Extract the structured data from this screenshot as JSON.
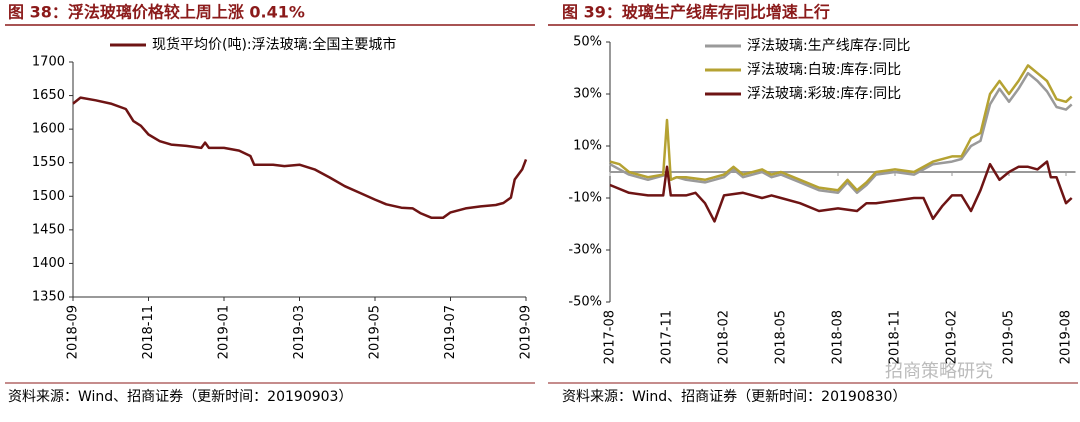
{
  "chart_data": [
    {
      "type": "line",
      "title": "图 38：浮法玻璃价格较上周上涨 0.41%",
      "source": "资料来源：Wind、招商证券（更新时间：20190903）",
      "xlim": [
        0,
        12
      ],
      "xticks": [
        {
          "value": 0,
          "label": "2018-09"
        },
        {
          "value": 2,
          "label": "2018-11"
        },
        {
          "value": 4,
          "label": "2019-01"
        },
        {
          "value": 6,
          "label": "2019-03"
        },
        {
          "value": 8,
          "label": "2019-05"
        },
        {
          "value": 10,
          "label": "2019-07"
        },
        {
          "value": 12,
          "label": "2019-09"
        }
      ],
      "ylim": [
        1350,
        1700
      ],
      "yticks": [
        1350,
        1400,
        1450,
        1500,
        1550,
        1600,
        1650,
        1700
      ],
      "series": [
        {
          "name": "现货平均价(吨):浮法玻璃:全国主要城市",
          "color": "#6e1414",
          "x": [
            0,
            0.2,
            0.6,
            1.0,
            1.4,
            1.6,
            1.8,
            2.0,
            2.3,
            2.6,
            3.0,
            3.4,
            3.5,
            3.6,
            4.0,
            4.4,
            4.7,
            4.8,
            5.3,
            5.6,
            6.0,
            6.4,
            6.8,
            7.2,
            7.6,
            8.0,
            8.3,
            8.7,
            9.0,
            9.2,
            9.5,
            9.8,
            10.0,
            10.4,
            10.8,
            11.2,
            11.4,
            11.6,
            11.7,
            11.9,
            12.0
          ],
          "values": [
            1638,
            1647,
            1643,
            1638,
            1630,
            1612,
            1605,
            1592,
            1582,
            1577,
            1575,
            1572,
            1580,
            1572,
            1572,
            1568,
            1560,
            1547,
            1547,
            1545,
            1547,
            1540,
            1528,
            1515,
            1505,
            1495,
            1488,
            1483,
            1482,
            1475,
            1468,
            1468,
            1476,
            1482,
            1485,
            1487,
            1490,
            1498,
            1525,
            1540,
            1555
          ]
        }
      ]
    },
    {
      "type": "line",
      "title": "图 39：玻璃生产线库存同比增速上行",
      "source": "资料来源：Wind、招商证券（更新时间：20190830）",
      "watermark": "招商策略研究",
      "xlim": [
        0,
        24.5
      ],
      "xticks": [
        {
          "value": 0,
          "label": "2017-08"
        },
        {
          "value": 3,
          "label": "2017-11"
        },
        {
          "value": 6,
          "label": "2018-02"
        },
        {
          "value": 9,
          "label": "2018-05"
        },
        {
          "value": 12,
          "label": "2018-08"
        },
        {
          "value": 15,
          "label": "2018-11"
        },
        {
          "value": 18,
          "label": "2019-02"
        },
        {
          "value": 21,
          "label": "2019-05"
        },
        {
          "value": 24,
          "label": "2019-08"
        }
      ],
      "ylim": [
        -50,
        50
      ],
      "yticks": [
        {
          "value": -50,
          "label": "-50%"
        },
        {
          "value": -30,
          "label": "-30%"
        },
        {
          "value": -10,
          "label": "-10%"
        },
        {
          "value": 10,
          "label": "10%"
        },
        {
          "value": 30,
          "label": "30%"
        },
        {
          "value": 50,
          "label": "50%"
        }
      ],
      "series": [
        {
          "name": "浮法玻璃:生产线库存:同比",
          "color": "#9a9a9a",
          "x": [
            0,
            1,
            2,
            3,
            3.2,
            3.5,
            4,
            5,
            6,
            6.5,
            7,
            8,
            8.5,
            9,
            10,
            11,
            12,
            12.5,
            13,
            13.5,
            14,
            15,
            16,
            17,
            18,
            18.5,
            19,
            19.5,
            20,
            20.5,
            21,
            21.5,
            22,
            22.5,
            23,
            23.5,
            24,
            24.3
          ],
          "values": [
            3,
            -1,
            -3,
            -1,
            -3,
            -2,
            -3,
            -4,
            -2,
            1,
            -2,
            0,
            -2,
            -1,
            -4,
            -7,
            -8,
            -4,
            -8,
            -5,
            -1,
            0,
            -1,
            3,
            4,
            5,
            10,
            12,
            26,
            32,
            27,
            32,
            38,
            35,
            31,
            25,
            24,
            26
          ]
        },
        {
          "name": "浮法玻璃:白玻:库存:同比",
          "color": "#b5a232",
          "x": [
            0,
            0.5,
            1,
            2,
            2.8,
            3.0,
            3.2,
            3.5,
            4,
            5,
            6,
            6.5,
            7,
            8,
            8.5,
            9,
            10,
            11,
            12,
            12.5,
            13,
            13.5,
            14,
            15,
            16,
            17,
            18,
            18.5,
            19,
            19.5,
            20,
            20.5,
            21,
            21.5,
            22,
            22.5,
            23,
            23.5,
            24,
            24.3
          ],
          "values": [
            4,
            3,
            0,
            -2,
            -1,
            20,
            -3,
            -2,
            -2,
            -3,
            -1,
            2,
            -1,
            1,
            -1,
            0,
            -3,
            -6,
            -7,
            -3,
            -7,
            -4,
            0,
            1,
            0,
            4,
            6,
            6,
            13,
            15,
            30,
            35,
            30,
            35,
            41,
            38,
            35,
            28,
            27,
            29
          ]
        },
        {
          "name": "浮法玻璃:彩玻:库存:同比",
          "color": "#6e1414",
          "x": [
            0,
            1,
            2,
            2.8,
            3.0,
            3.2,
            4,
            4.5,
            5,
            5.5,
            6,
            7,
            8,
            8.5,
            9,
            10,
            11,
            12,
            13,
            13.5,
            14,
            15,
            16,
            16.5,
            17,
            17.5,
            18,
            18.5,
            19,
            19.5,
            20,
            20.5,
            21,
            21.5,
            22,
            22.5,
            23,
            23.2,
            23.5,
            24,
            24.3
          ],
          "values": [
            -5,
            -8,
            -9,
            -9,
            2,
            -9,
            -9,
            -8,
            -12,
            -19,
            -9,
            -8,
            -10,
            -9,
            -10,
            -12,
            -15,
            -14,
            -15,
            -12,
            -12,
            -11,
            -10,
            -10,
            -18,
            -13,
            -9,
            -9,
            -15,
            -7,
            3,
            -3,
            0,
            2,
            2,
            1,
            4,
            -2,
            -2,
            -12,
            -10
          ]
        }
      ]
    }
  ]
}
